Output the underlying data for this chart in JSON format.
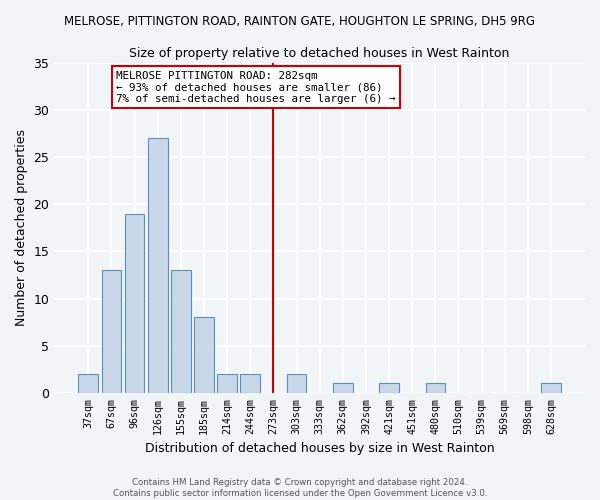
{
  "title_line1": "MELROSE, PITTINGTON ROAD, RAINTON GATE, HOUGHTON LE SPRING, DH5 9RG",
  "title_line2": "Size of property relative to detached houses in West Rainton",
  "xlabel": "Distribution of detached houses by size in West Rainton",
  "ylabel": "Number of detached properties",
  "bin_labels": [
    "37sqm",
    "67sqm",
    "96sqm",
    "126sqm",
    "155sqm",
    "185sqm",
    "214sqm",
    "244sqm",
    "273sqm",
    "303sqm",
    "333sqm",
    "362sqm",
    "392sqm",
    "421sqm",
    "451sqm",
    "480sqm",
    "510sqm",
    "539sqm",
    "569sqm",
    "598sqm",
    "628sqm"
  ],
  "bar_values": [
    2,
    13,
    19,
    27,
    13,
    8,
    2,
    2,
    0,
    2,
    0,
    1,
    0,
    1,
    0,
    1,
    0,
    0,
    0,
    0,
    1
  ],
  "bar_color": "#c8d8ea",
  "bar_edge_color": "#5b8db8",
  "vline_index": 8,
  "vline_color": "#cc0000",
  "ylim": [
    0,
    35
  ],
  "yticks": [
    0,
    5,
    10,
    15,
    20,
    25,
    30,
    35
  ],
  "annotation_title": "MELROSE PITTINGTON ROAD: 282sqm",
  "annotation_line2": "← 93% of detached houses are smaller (86)",
  "annotation_line3": "7% of semi-detached houses are larger (6) →",
  "annotation_box_color": "#cc0000",
  "background_color": "#f2f5f8",
  "grid_color": "#ffffff",
  "footer_line1": "Contains HM Land Registry data © Crown copyright and database right 2024.",
  "footer_line2": "Contains public sector information licensed under the Open Government Licence v3.0."
}
